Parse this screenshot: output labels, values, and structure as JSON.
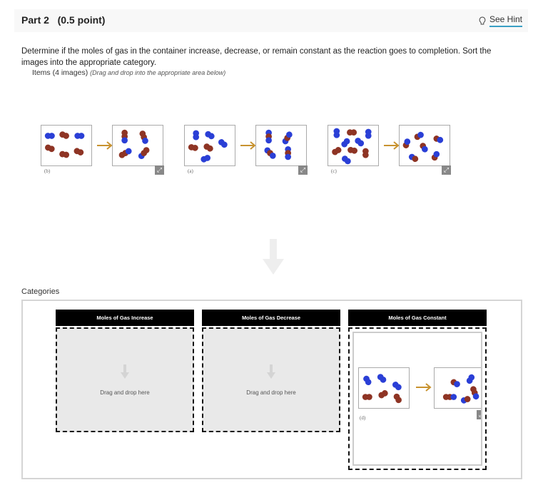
{
  "header": {
    "title": "Part 2   (0.5 point)",
    "hint_label": "See Hint",
    "hint_icon": "lightbulb-icon"
  },
  "prompt": "Determine if the moles of gas in the container increase, decrease, or remain constant as the reaction goes to completion. Sort the images into the appropriate category.",
  "items": {
    "label": "Items (4 images)",
    "instruction": "(Drag and drop into the appropriate area below)",
    "images": [
      {
        "label": "(b)"
      },
      {
        "label": "(a)"
      },
      {
        "label": "(c)"
      }
    ]
  },
  "categories": {
    "label": "Categories",
    "columns": [
      {
        "title": "Moles of Gas Increase",
        "placeholder": "Drag and drop here"
      },
      {
        "title": "Moles of Gas Decrease",
        "placeholder": "Drag and drop here"
      },
      {
        "title": "Moles of Gas Constant",
        "placeholder": "",
        "items": [
          {
            "label": "(d)"
          }
        ]
      }
    ]
  },
  "colors": {
    "blue": "#2a3fd6",
    "red": "#8e3424",
    "arrow": "#c8922f",
    "hint_underline": "#3a9fc4"
  }
}
